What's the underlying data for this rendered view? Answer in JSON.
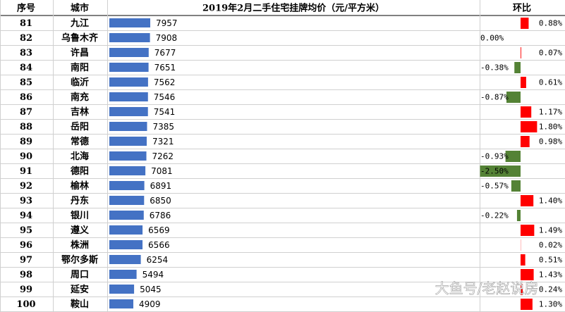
{
  "header": [
    "序号",
    "城市",
    "2019年2月二手住宅挂牌均价（元/平方米）",
    "环比"
  ],
  "rows": [
    [
      81,
      "九江",
      7957,
      "0.88%"
    ],
    [
      82,
      "乌鲁木齐",
      7908,
      "0.00%"
    ],
    [
      83,
      "许昌",
      7677,
      "0.07%"
    ],
    [
      84,
      "南阳",
      7651,
      "-0.38%"
    ],
    [
      85,
      "临沂",
      7562,
      "0.61%"
    ],
    [
      86,
      "南充",
      7546,
      "-0.87%"
    ],
    [
      87,
      "吉林",
      7541,
      "1.17%"
    ],
    [
      88,
      "岳阳",
      7385,
      "1.80%"
    ],
    [
      89,
      "常德",
      7321,
      "0.98%"
    ],
    [
      90,
      "北海",
      7262,
      "-0.93%"
    ],
    [
      91,
      "德阳",
      7081,
      "-2.50%"
    ],
    [
      92,
      "榆林",
      6891,
      "-0.57%"
    ],
    [
      93,
      "丹东",
      6850,
      "1.40%"
    ],
    [
      94,
      "银川",
      6786,
      "-0.22%"
    ],
    [
      95,
      "遵义",
      6569,
      "1.49%"
    ],
    [
      96,
      "株洲",
      6566,
      "0.02%"
    ],
    [
      97,
      "鄂尔多斯",
      6254,
      "0.51%"
    ],
    [
      98,
      "周口",
      5494,
      "1.43%"
    ],
    [
      99,
      "延安",
      5045,
      "0.24%"
    ],
    [
      100,
      "鞍山",
      4909,
      "1.30%"
    ]
  ],
  "watermark": "大鱼号/老赵说房"
}
